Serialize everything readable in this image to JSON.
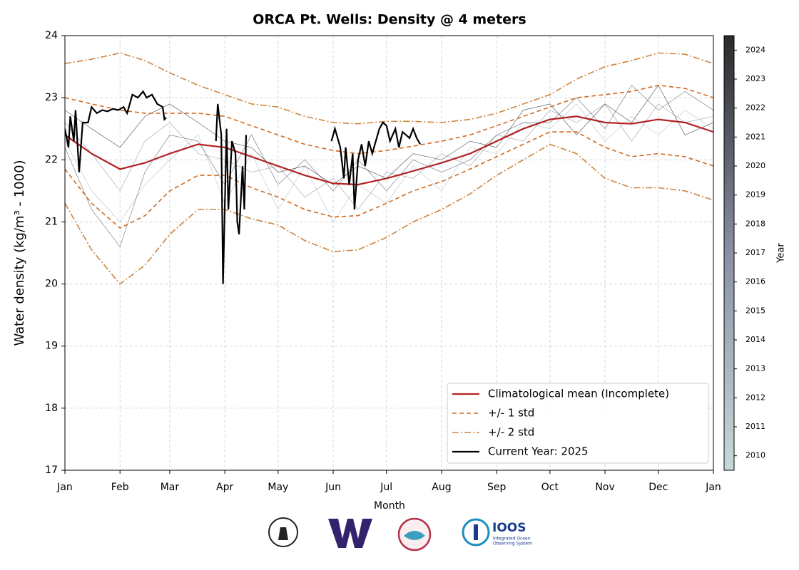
{
  "chart_data": {
    "type": "line",
    "title": "ORCA Pt. Wells: Density @ 4 meters",
    "xlabel": "Month",
    "ylabel": "Water density (kg/m³ - 1000)",
    "xlim": [
      0,
      365
    ],
    "ylim": [
      17,
      24
    ],
    "xticks": [
      {
        "value": 0,
        "label": "Jan"
      },
      {
        "value": 31,
        "label": "Feb"
      },
      {
        "value": 59,
        "label": "Mar"
      },
      {
        "value": 90,
        "label": "Apr"
      },
      {
        "value": 120,
        "label": "May"
      },
      {
        "value": 151,
        "label": "Jun"
      },
      {
        "value": 181,
        "label": "Jul"
      },
      {
        "value": 212,
        "label": "Aug"
      },
      {
        "value": 243,
        "label": "Sep"
      },
      {
        "value": 273,
        "label": "Oct"
      },
      {
        "value": 304,
        "label": "Nov"
      },
      {
        "value": 334,
        "label": "Dec"
      },
      {
        "value": 365,
        "label": "Jan"
      }
    ],
    "yticks": [
      17,
      18,
      19,
      20,
      21,
      22,
      23,
      24
    ],
    "grid": true,
    "legend": "lower right",
    "x": [
      0,
      15,
      31,
      45,
      59,
      75,
      90,
      105,
      120,
      135,
      151,
      165,
      181,
      196,
      212,
      228,
      243,
      258,
      273,
      288,
      304,
      319,
      334,
      349,
      365
    ],
    "series": [
      {
        "name": "Climatological mean (Incomplete)",
        "color": "#b22222",
        "style": "solid",
        "values": [
          22.4,
          22.1,
          21.85,
          21.95,
          22.1,
          22.25,
          22.2,
          22.05,
          21.9,
          21.75,
          21.62,
          21.6,
          21.7,
          21.82,
          21.95,
          22.1,
          22.3,
          22.5,
          22.65,
          22.7,
          22.6,
          22.58,
          22.65,
          22.6,
          22.45
        ]
      },
      {
        "name": "+/- 1 std",
        "color": "#d2691e",
        "style": "dashed",
        "upper": [
          23.0,
          22.9,
          22.8,
          22.75,
          22.75,
          22.75,
          22.7,
          22.55,
          22.4,
          22.25,
          22.15,
          22.1,
          22.15,
          22.22,
          22.3,
          22.4,
          22.55,
          22.7,
          22.85,
          23.0,
          23.05,
          23.1,
          23.2,
          23.15,
          23.0
        ],
        "lower": [
          21.85,
          21.3,
          20.9,
          21.1,
          21.5,
          21.75,
          21.75,
          21.55,
          21.4,
          21.2,
          21.08,
          21.1,
          21.3,
          21.5,
          21.65,
          21.85,
          22.05,
          22.25,
          22.45,
          22.45,
          22.2,
          22.05,
          22.1,
          22.05,
          21.9
        ]
      },
      {
        "name": "+/- 2 std",
        "color": "#cd853f",
        "style": "dashdot",
        "upper": [
          23.55,
          23.62,
          23.72,
          23.6,
          23.4,
          23.2,
          23.05,
          22.9,
          22.85,
          22.7,
          22.6,
          22.58,
          22.62,
          22.62,
          22.6,
          22.65,
          22.75,
          22.9,
          23.05,
          23.3,
          23.5,
          23.6,
          23.72,
          23.7,
          23.55
        ],
        "lower": [
          21.3,
          20.55,
          20.0,
          20.3,
          20.8,
          21.2,
          21.2,
          21.05,
          20.95,
          20.7,
          20.52,
          20.55,
          20.75,
          21.0,
          21.2,
          21.45,
          21.75,
          22.0,
          22.25,
          22.1,
          21.7,
          21.55,
          21.55,
          21.5,
          21.35
        ]
      },
      {
        "name": "Current Year: 2025",
        "color": "#000000",
        "style": "solid",
        "x": [
          0,
          2,
          3,
          5,
          6,
          8,
          10,
          13,
          15,
          18,
          21,
          24,
          27,
          30,
          33,
          35,
          38,
          41,
          44,
          46,
          49,
          52,
          55,
          56,
          57,
          70,
          85,
          86,
          88,
          89,
          91,
          92,
          94,
          96,
          97,
          98,
          100,
          101,
          102,
          120,
          150,
          152,
          154,
          155,
          157,
          158,
          160,
          162,
          163,
          165,
          167,
          169,
          171,
          173,
          175,
          177,
          179,
          181,
          183,
          186,
          188,
          190,
          192,
          194,
          196,
          198,
          200
        ],
        "values": [
          22.5,
          22.2,
          22.7,
          22.3,
          22.8,
          21.8,
          22.6,
          22.6,
          22.85,
          22.75,
          22.8,
          22.78,
          22.82,
          22.8,
          22.85,
          22.75,
          23.05,
          23.0,
          23.1,
          23.0,
          23.05,
          22.9,
          22.85,
          22.65,
          22.68,
          null,
          22.3,
          22.9,
          22.4,
          20.0,
          22.5,
          21.2,
          22.3,
          22.1,
          21.0,
          20.8,
          21.9,
          21.2,
          22.4,
          null,
          22.3,
          22.5,
          22.3,
          22.2,
          21.7,
          22.2,
          21.6,
          22.1,
          21.2,
          22.0,
          22.25,
          21.9,
          22.3,
          22.1,
          22.3,
          22.5,
          22.6,
          22.55,
          22.3,
          22.5,
          22.2,
          22.45,
          22.4,
          22.35,
          22.5,
          22.35,
          22.25
        ]
      }
    ],
    "history": [
      {
        "year": 2012,
        "values": [
          22.3,
          21.5,
          21.0,
          21.6,
          22.0,
          22.4,
          21.3,
          22.1,
          21.2,
          21.9,
          21.0,
          21.6,
          21.3,
          21.9,
          21.5,
          22.2,
          22.1,
          22.6,
          22.5,
          22.9,
          22.3,
          22.7,
          22.4,
          22.8,
          22.5
        ]
      },
      {
        "year": 2016,
        "values": [
          22.6,
          22.1,
          21.5,
          22.3,
          22.6,
          22.1,
          22.0,
          21.8,
          21.9,
          21.4,
          21.7,
          21.2,
          21.8,
          21.7,
          22.1,
          21.9,
          22.4,
          22.3,
          22.8,
          22.6,
          22.9,
          22.3,
          22.9,
          22.6,
          22.7
        ]
      },
      {
        "year": 2020,
        "values": [
          22.2,
          21.2,
          20.6,
          21.8,
          22.4,
          22.3,
          21.6,
          22.4,
          21.6,
          22.0,
          21.5,
          22.0,
          21.5,
          22.0,
          21.8,
          22.0,
          22.4,
          22.6,
          22.6,
          23.0,
          22.5,
          23.2,
          22.8,
          23.1,
          22.8
        ]
      },
      {
        "year": 2023,
        "values": [
          22.8,
          22.5,
          22.2,
          22.7,
          22.9,
          22.6,
          22.3,
          22.2,
          21.8,
          21.9,
          21.6,
          21.9,
          21.7,
          22.1,
          22.0,
          22.3,
          22.2,
          22.8,
          22.9,
          22.4,
          22.9,
          22.6,
          23.2,
          22.4,
          22.6
        ]
      }
    ],
    "colorbar": {
      "label": "Year",
      "lim": [
        2009.5,
        2024.5
      ],
      "ticks": [
        2010,
        2011,
        2012,
        2013,
        2014,
        2015,
        2016,
        2017,
        2018,
        2019,
        2020,
        2021,
        2022,
        2023,
        2024
      ],
      "colors": [
        "#c6d9d9",
        "#8a90a6",
        "#2a2a2a"
      ]
    }
  },
  "footer": {
    "logo_text": "IOOS",
    "logo_subtext": [
      "Integrated Ocean",
      "Observing System"
    ]
  }
}
